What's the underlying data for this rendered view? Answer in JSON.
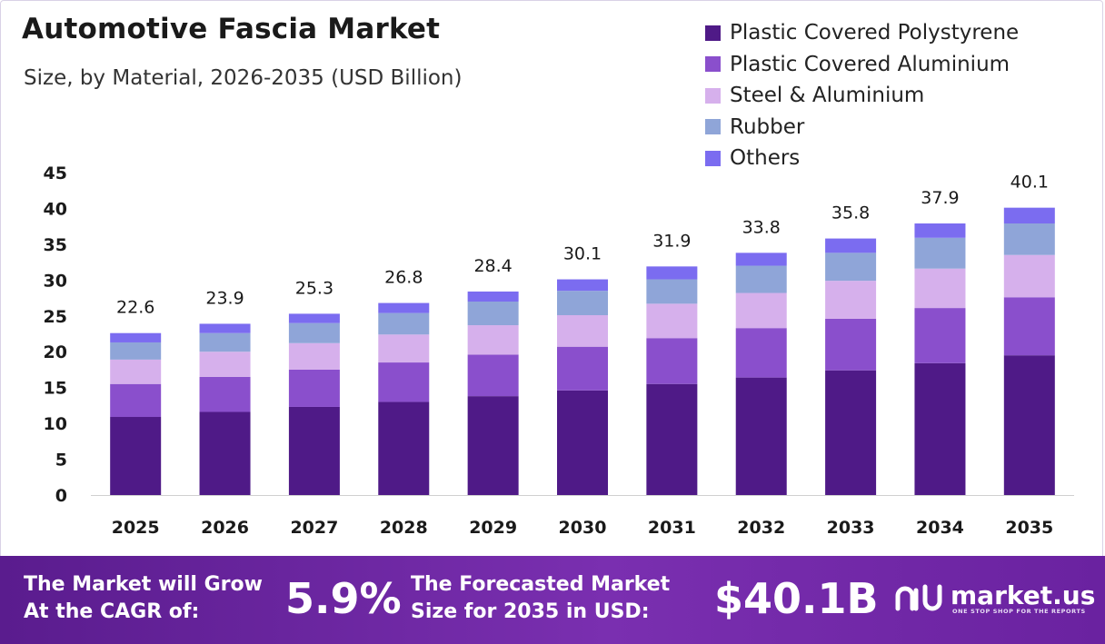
{
  "header": {
    "title": "Automotive Fascia Market",
    "subtitle": "Size, by Material, 2026-2035 (USD Billion)"
  },
  "colors": {
    "plastic_covered_polystyrene": "#4f1a87",
    "plastic_covered_aluminium": "#8a4fcc",
    "steel_aluminium": "#d6b0ec",
    "rubber": "#8fa5d8",
    "others": "#7b6cf0",
    "banner": "#6a22a0"
  },
  "chart_data": {
    "type": "bar",
    "stacked": true,
    "categories": [
      "2025",
      "2026",
      "2027",
      "2028",
      "2029",
      "2030",
      "2031",
      "2032",
      "2033",
      "2034",
      "2035"
    ],
    "series": [
      {
        "name": "Plastic Covered Polystyrene",
        "values": [
          10.9,
          11.6,
          12.3,
          13.0,
          13.8,
          14.6,
          15.5,
          16.4,
          17.4,
          18.4,
          19.5
        ]
      },
      {
        "name": "Plastic Covered Aluminium",
        "values": [
          4.6,
          4.9,
          5.2,
          5.5,
          5.8,
          6.1,
          6.4,
          6.9,
          7.2,
          7.7,
          8.1
        ]
      },
      {
        "name": "Steel & Aluminium",
        "values": [
          3.4,
          3.5,
          3.7,
          3.9,
          4.1,
          4.4,
          4.8,
          4.9,
          5.3,
          5.5,
          5.9
        ]
      },
      {
        "name": "Rubber",
        "values": [
          2.4,
          2.6,
          2.8,
          3.0,
          3.3,
          3.4,
          3.4,
          3.8,
          3.9,
          4.3,
          4.4
        ]
      },
      {
        "name": "Others",
        "values": [
          1.3,
          1.3,
          1.3,
          1.4,
          1.4,
          1.6,
          1.8,
          1.8,
          2.0,
          2.0,
          2.2
        ]
      }
    ],
    "totals": [
      "22.6",
      "23.9",
      "25.3",
      "26.8",
      "28.4",
      "30.1",
      "31.9",
      "33.8",
      "35.8",
      "37.9",
      "40.1"
    ],
    "yticks": [
      "0",
      "5",
      "10",
      "15",
      "20",
      "25",
      "30",
      "35",
      "40",
      "45"
    ],
    "ylim": [
      0,
      45
    ],
    "grid": false,
    "legend": "top-right"
  },
  "banner": {
    "cagr_label_line1": "The Market will Grow",
    "cagr_label_line2": "At the CAGR of:",
    "cagr_value": "5.9%",
    "forecast_label_line1": "The Forecasted Market",
    "forecast_label_line2": "Size for 2035 in USD:",
    "forecast_value": "$40.1B",
    "brand_name": "market.us",
    "brand_tagline": "ONE STOP SHOP FOR THE REPORTS"
  }
}
